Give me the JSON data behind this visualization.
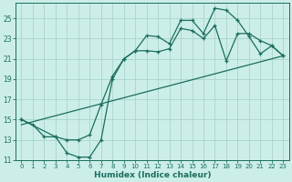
{
  "xlabel": "Humidex (Indice chaleur)",
  "background_color": "#cceee8",
  "grid_color": "#aad4cc",
  "line_color": "#1a6e5e",
  "xlim": [
    -0.5,
    23.5
  ],
  "ylim": [
    11,
    26.5
  ],
  "yticks": [
    11,
    13,
    15,
    17,
    19,
    21,
    23,
    25
  ],
  "xticks": [
    0,
    1,
    2,
    3,
    4,
    5,
    6,
    7,
    8,
    9,
    10,
    11,
    12,
    13,
    14,
    15,
    16,
    17,
    18,
    19,
    20,
    21,
    22,
    23
  ],
  "line1_x": [
    0,
    1,
    2,
    3,
    4,
    5,
    6,
    7,
    8,
    9,
    10,
    11,
    12,
    13,
    14,
    15,
    16,
    17,
    18,
    19,
    20,
    21,
    22,
    23
  ],
  "line1_y": [
    15.0,
    14.5,
    13.3,
    13.3,
    11.7,
    11.3,
    11.3,
    13.0,
    19.0,
    21.0,
    21.8,
    23.3,
    23.2,
    22.5,
    24.8,
    24.8,
    23.5,
    26.0,
    25.8,
    24.8,
    23.2,
    21.5,
    22.3,
    21.3
  ],
  "line2_x": [
    0,
    3,
    4,
    5,
    6,
    7,
    8,
    9,
    10,
    11,
    12,
    13,
    14,
    15,
    16,
    17,
    18,
    19,
    20,
    21,
    22,
    23
  ],
  "line2_y": [
    15.0,
    13.3,
    13.0,
    13.0,
    13.5,
    16.5,
    19.3,
    21.0,
    21.8,
    21.8,
    21.7,
    22.0,
    24.0,
    23.8,
    23.0,
    24.3,
    20.8,
    23.5,
    23.5,
    22.8,
    22.3,
    21.3
  ],
  "line3_x": [
    0,
    23
  ],
  "line3_y": [
    14.5,
    21.3
  ]
}
